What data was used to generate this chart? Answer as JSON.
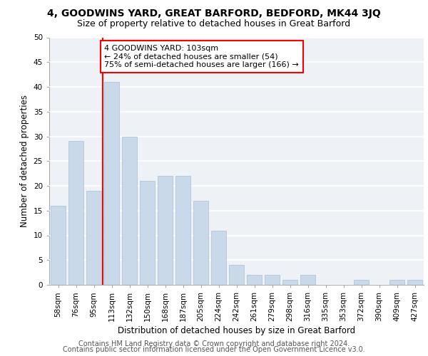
{
  "title1": "4, GOODWINS YARD, GREAT BARFORD, BEDFORD, MK44 3JQ",
  "title2": "Size of property relative to detached houses in Great Barford",
  "xlabel": "Distribution of detached houses by size in Great Barford",
  "ylabel": "Number of detached properties",
  "categories": [
    "58sqm",
    "76sqm",
    "95sqm",
    "113sqm",
    "132sqm",
    "150sqm",
    "168sqm",
    "187sqm",
    "205sqm",
    "224sqm",
    "242sqm",
    "261sqm",
    "279sqm",
    "298sqm",
    "316sqm",
    "335sqm",
    "353sqm",
    "372sqm",
    "390sqm",
    "409sqm",
    "427sqm"
  ],
  "values": [
    16,
    29,
    19,
    41,
    30,
    21,
    22,
    22,
    17,
    11,
    4,
    2,
    2,
    1,
    2,
    0,
    0,
    1,
    0,
    1,
    1
  ],
  "bar_color": "#c9d9ea",
  "bar_edge_color": "#a8c0d6",
  "vline_color": "red",
  "annotation_text": "4 GOODWINS YARD: 103sqm\n← 24% of detached houses are smaller (54)\n75% of semi-detached houses are larger (166) →",
  "annotation_box_color": "white",
  "annotation_box_edge": "red",
  "ylim": [
    0,
    50
  ],
  "yticks": [
    0,
    5,
    10,
    15,
    20,
    25,
    30,
    35,
    40,
    45,
    50
  ],
  "footer1": "Contains HM Land Registry data © Crown copyright and database right 2024.",
  "footer2": "Contains public sector information licensed under the Open Government Licence v3.0.",
  "background_color": "#eef2f7",
  "grid_color": "white",
  "title1_fontsize": 10,
  "title2_fontsize": 9,
  "xlabel_fontsize": 8.5,
  "ylabel_fontsize": 8.5,
  "tick_fontsize": 7.5,
  "annotation_fontsize": 8,
  "footer_fontsize": 7
}
